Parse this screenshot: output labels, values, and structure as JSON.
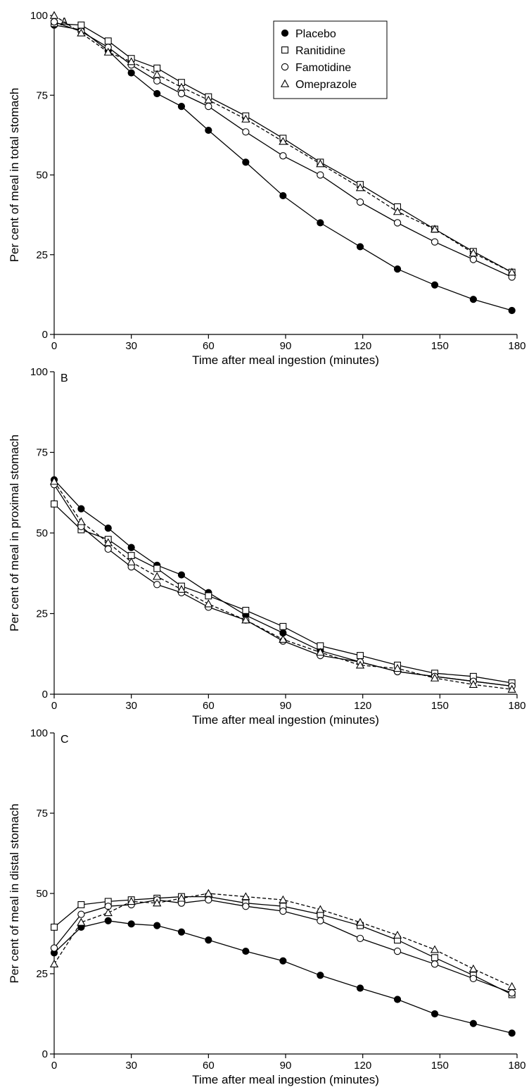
{
  "chart_data": [
    {
      "type": "line",
      "panel_label": "A",
      "xlabel": "Time after meal ingestion (minutes)",
      "ylabel": "Per cent of meal in total stomach",
      "xlim": [
        0,
        180
      ],
      "ylim": [
        0,
        100
      ],
      "xticks": [
        0,
        30,
        60,
        90,
        120,
        150,
        180
      ],
      "yticks": [
        0,
        25,
        50,
        75,
        100
      ],
      "grid": false,
      "legend_position": "top-right",
      "series": [
        {
          "name": "Placebo",
          "marker": "filled-circle",
          "line": "solid",
          "x": [
            0,
            10.5,
            21,
            30,
            40,
            49.5,
            60,
            74.5,
            89,
            103.5,
            119,
            133.5,
            148,
            163,
            178
          ],
          "y": [
            97,
            95.5,
            89,
            82,
            75.5,
            71.5,
            64,
            54,
            43.5,
            35,
            27.5,
            20.5,
            15.5,
            11,
            7.5
          ]
        },
        {
          "name": "Ranitidine",
          "marker": "open-square",
          "line": "solid",
          "x": [
            0,
            10.5,
            21,
            30,
            40,
            49.5,
            60,
            74.5,
            89,
            103.5,
            119,
            133.5,
            148,
            163,
            178
          ],
          "y": [
            97.5,
            97,
            92,
            86.5,
            83.5,
            79,
            74.5,
            68.5,
            61.5,
            54,
            47,
            40,
            33,
            26,
            19.5
          ]
        },
        {
          "name": "Famotidine",
          "marker": "open-circle",
          "line": "solid",
          "x": [
            0,
            10.5,
            21,
            30,
            40,
            49.5,
            60,
            74.5,
            89,
            103.5,
            119,
            133.5,
            148,
            163,
            178
          ],
          "y": [
            98,
            95,
            90,
            84.5,
            79.5,
            75.5,
            71.5,
            63.5,
            56,
            50,
            41.5,
            35,
            29,
            23.5,
            18
          ]
        },
        {
          "name": "Omeprazole",
          "marker": "open-triangle",
          "line": "dashed",
          "x": [
            0,
            10.5,
            21,
            30,
            40,
            49.5,
            60,
            74.5,
            89,
            103.5,
            119,
            133.5,
            148,
            163,
            178
          ],
          "y": [
            100,
            94.5,
            88.5,
            85.5,
            81.5,
            77.5,
            73.5,
            67.5,
            60.5,
            53.5,
            46,
            38.5,
            33,
            25.5,
            19.5
          ]
        }
      ]
    },
    {
      "type": "line",
      "panel_label": "B",
      "xlabel": "Time after meal ingestion (minutes)",
      "ylabel": "Per cent of meal in proximal stomach",
      "xlim": [
        0,
        180
      ],
      "ylim": [
        0,
        100
      ],
      "xticks": [
        0,
        30,
        60,
        90,
        120,
        150,
        180
      ],
      "yticks": [
        0,
        25,
        50,
        75,
        100
      ],
      "grid": false,
      "series": [
        {
          "name": "Placebo",
          "marker": "filled-circle",
          "line": "solid",
          "x": [
            0,
            10.5,
            21,
            30,
            40,
            49.5,
            60,
            74.5,
            89,
            103.5,
            119,
            133.5,
            148,
            163,
            178
          ],
          "y": [
            66.5,
            57.5,
            51.5,
            45.5,
            40,
            37,
            31.5,
            24.5,
            19,
            13.5,
            10,
            7,
            5.5,
            4,
            2.5
          ]
        },
        {
          "name": "Ranitidine",
          "marker": "open-square",
          "line": "solid",
          "x": [
            0,
            10.5,
            21,
            30,
            40,
            49.5,
            60,
            74.5,
            89,
            103.5,
            119,
            133.5,
            148,
            163,
            178
          ],
          "y": [
            59,
            51,
            48,
            43,
            39,
            33.5,
            30.5,
            26,
            21,
            15,
            12,
            9,
            6.5,
            5.5,
            3.5
          ]
        },
        {
          "name": "Famotidine",
          "marker": "open-circle",
          "line": "solid",
          "x": [
            0,
            10.5,
            21,
            30,
            40,
            49.5,
            60,
            74.5,
            89,
            103.5,
            119,
            133.5,
            148,
            163,
            178
          ],
          "y": [
            65,
            52,
            45,
            39.5,
            34,
            31.5,
            27,
            23,
            16.5,
            12,
            10,
            7,
            5.5,
            4,
            2.5
          ]
        },
        {
          "name": "Omeprazole",
          "marker": "open-triangle",
          "line": "dashed",
          "x": [
            0,
            10.5,
            21,
            30,
            40,
            49.5,
            60,
            74.5,
            89,
            103.5,
            119,
            133.5,
            148,
            163,
            178
          ],
          "y": [
            66,
            53.5,
            47,
            41,
            36.5,
            32.5,
            28,
            23,
            17,
            13,
            9,
            8,
            5,
            3,
            1.5
          ]
        }
      ]
    },
    {
      "type": "line",
      "panel_label": "C",
      "xlabel": "Time after meal ingestion (minutes)",
      "ylabel": "Per cent of meal in distal stomach",
      "xlim": [
        0,
        180
      ],
      "ylim": [
        0,
        100
      ],
      "xticks": [
        0,
        30,
        60,
        90,
        120,
        150,
        180
      ],
      "yticks": [
        0,
        25,
        50,
        75,
        100
      ],
      "grid": false,
      "series": [
        {
          "name": "Placebo",
          "marker": "filled-circle",
          "line": "solid",
          "x": [
            0,
            10.5,
            21,
            30,
            40,
            49.5,
            60,
            74.5,
            89,
            103.5,
            119,
            133.5,
            148,
            163,
            178
          ],
          "y": [
            31.5,
            39.5,
            41.5,
            40.5,
            40,
            38,
            35.5,
            32,
            29,
            24.5,
            20.5,
            17,
            12.5,
            9.5,
            6.5
          ]
        },
        {
          "name": "Ranitidine",
          "marker": "open-square",
          "line": "solid",
          "x": [
            0,
            10.5,
            21,
            30,
            40,
            49.5,
            60,
            74.5,
            89,
            103.5,
            119,
            133.5,
            148,
            163,
            178
          ],
          "y": [
            39.5,
            46.5,
            47.5,
            48,
            48.5,
            49,
            49,
            47,
            46,
            43.5,
            40,
            35.5,
            30,
            24.5,
            18.5
          ]
        },
        {
          "name": "Famotidine",
          "marker": "open-circle",
          "line": "solid",
          "x": [
            0,
            10.5,
            21,
            30,
            40,
            49.5,
            60,
            74.5,
            89,
            103.5,
            119,
            133.5,
            148,
            163,
            178
          ],
          "y": [
            33,
            43.5,
            46,
            46.5,
            48,
            47,
            48,
            46,
            44.5,
            41.5,
            36,
            32,
            28,
            23.5,
            19
          ]
        },
        {
          "name": "Omeprazole",
          "marker": "open-triangle",
          "line": "dashed",
          "x": [
            0,
            10.5,
            21,
            30,
            40,
            49.5,
            60,
            74.5,
            89,
            103.5,
            119,
            133.5,
            148,
            163,
            178
          ],
          "y": [
            28,
            41,
            44,
            47.5,
            47,
            48.5,
            50,
            49,
            48,
            45,
            41,
            37,
            32.5,
            26.5,
            21
          ]
        }
      ]
    }
  ]
}
